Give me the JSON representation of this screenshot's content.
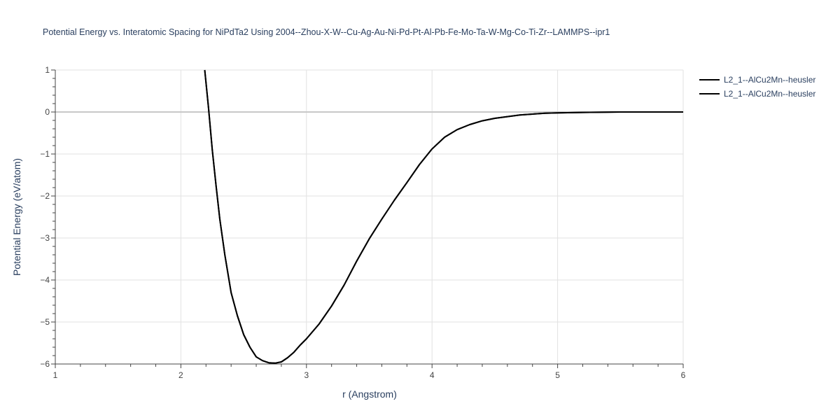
{
  "chart_data": {
    "type": "line",
    "title": "Potential Energy vs. Interatomic Spacing for NiPdTa2 Using 2004--Zhou-X-W--Cu-Ag-Au-Ni-Pd-Pt-Al-Pb-Fe-Mo-Ta-W-Mg-Co-Ti-Zr--LAMMPS--ipr1",
    "xlabel": "r (Angstrom)",
    "ylabel": "Potential Energy (eV/atom)",
    "xlim": [
      1,
      6
    ],
    "ylim": [
      -6,
      1
    ],
    "xticks": [
      1,
      2,
      3,
      4,
      5,
      6
    ],
    "yticks": [
      1,
      0,
      -1,
      -2,
      -3,
      -4,
      -5,
      -6
    ],
    "xtick_labels": [
      "1",
      "2",
      "3",
      "4",
      "5",
      "6"
    ],
    "ytick_labels": [
      "1",
      "0",
      "−1",
      "−2",
      "−3",
      "−4",
      "−5",
      "−6"
    ],
    "grid": true,
    "legend_position": "top-right",
    "series": [
      {
        "name": "L2_1--AlCu2Mn--heusler",
        "color": "#000000",
        "x": [
          2.19,
          2.22,
          2.25,
          2.28,
          2.31,
          2.35,
          2.4,
          2.45,
          2.5,
          2.55,
          2.6,
          2.65,
          2.7,
          2.75,
          2.8,
          2.85,
          2.9,
          2.95,
          3.0,
          3.1,
          3.2,
          3.3,
          3.4,
          3.5,
          3.6,
          3.7,
          3.8,
          3.9,
          4.0,
          4.1,
          4.2,
          4.3,
          4.4,
          4.5,
          4.6,
          4.7,
          4.8,
          4.9,
          5.0,
          5.2,
          5.5,
          6.0
        ],
        "y": [
          1.0,
          0.1,
          -0.9,
          -1.75,
          -2.55,
          -3.4,
          -4.3,
          -4.85,
          -5.3,
          -5.6,
          -5.83,
          -5.92,
          -5.97,
          -5.98,
          -5.95,
          -5.85,
          -5.72,
          -5.55,
          -5.4,
          -5.05,
          -4.62,
          -4.12,
          -3.55,
          -3.02,
          -2.55,
          -2.1,
          -1.68,
          -1.25,
          -0.88,
          -0.6,
          -0.42,
          -0.3,
          -0.21,
          -0.15,
          -0.11,
          -0.07,
          -0.05,
          -0.03,
          -0.02,
          -0.01,
          0.0,
          0.0
        ]
      },
      {
        "name": "L2_1--AlCu2Mn--heusler",
        "color": "#000000",
        "x": [
          2.19,
          2.22,
          2.25,
          2.28,
          2.31,
          2.35,
          2.4,
          2.45,
          2.5,
          2.55,
          2.6,
          2.65,
          2.7,
          2.75,
          2.8,
          2.85,
          2.9,
          2.95,
          3.0,
          3.1,
          3.2,
          3.3,
          3.4,
          3.5,
          3.6,
          3.7,
          3.8,
          3.9,
          4.0,
          4.1,
          4.2,
          4.3,
          4.4,
          4.5,
          4.6,
          4.7,
          4.8,
          4.9,
          5.0,
          5.2,
          5.5,
          6.0
        ],
        "y": [
          1.0,
          0.1,
          -0.9,
          -1.75,
          -2.55,
          -3.4,
          -4.3,
          -4.85,
          -5.3,
          -5.6,
          -5.83,
          -5.92,
          -5.97,
          -5.98,
          -5.95,
          -5.85,
          -5.72,
          -5.55,
          -5.4,
          -5.05,
          -4.62,
          -4.12,
          -3.55,
          -3.02,
          -2.55,
          -2.1,
          -1.68,
          -1.25,
          -0.88,
          -0.6,
          -0.42,
          -0.3,
          -0.21,
          -0.15,
          -0.11,
          -0.07,
          -0.05,
          -0.03,
          -0.02,
          -0.01,
          0.0,
          0.0
        ]
      }
    ]
  }
}
